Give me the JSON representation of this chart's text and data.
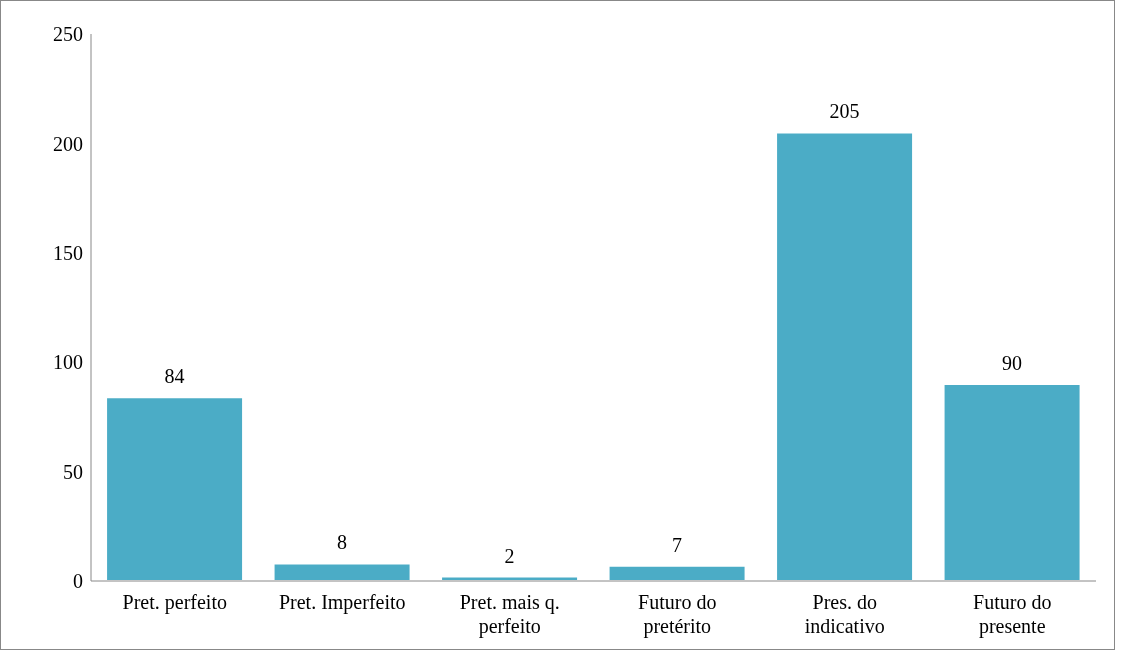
{
  "chart_data": {
    "type": "bar",
    "categories": [
      "Pret. perfeito",
      "Pret. Imperfeito",
      "Pret. mais q. perfeito",
      "Futuro do pretérito",
      "Pres. do indicativo",
      "Futuro do presente"
    ],
    "values": [
      84,
      8,
      2,
      7,
      205,
      90
    ],
    "color": "#4bacc6",
    "ylim": [
      0,
      250
    ],
    "yticks": [
      0,
      50,
      100,
      150,
      200,
      250
    ],
    "grid": false,
    "data_labels": true,
    "legend": false
  }
}
